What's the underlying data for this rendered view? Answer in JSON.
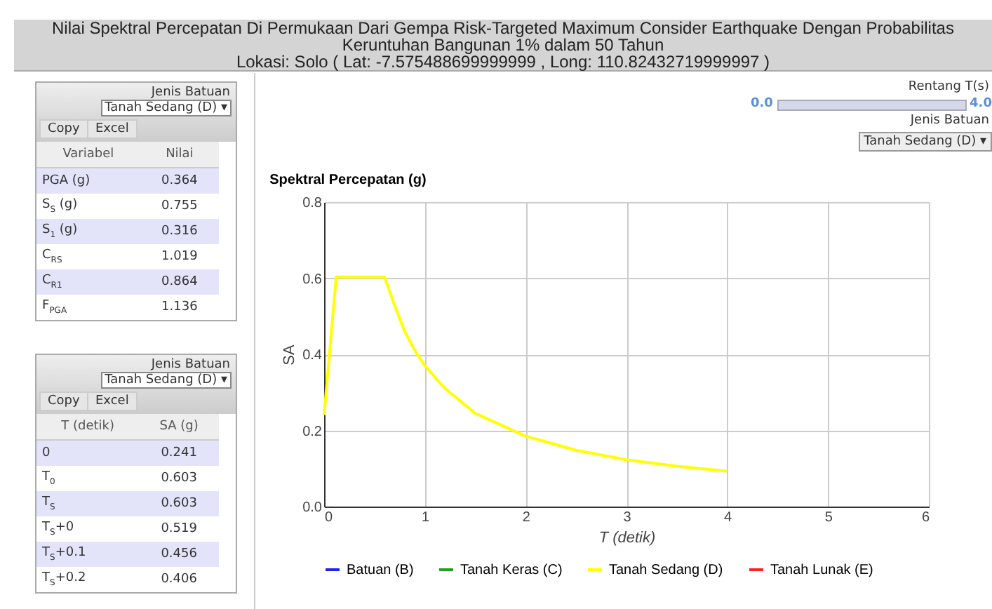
{
  "chart_data": [
    {
      "type": "other",
      "title": "Nilai Spektral Percepatan Di Permukaan Dari Gempa Risk-Targeted Maximum Consider Earthquake Dengan Probabilitas Keruntuhan Bangunan 1% dalam 50 Tahun",
      "subtitle": "Lokasi: Solo ( Lat: -7.575488699999999 , Long: 110.82432719999997 )"
    },
    {
      "type": "other",
      "title": "Jenis Batuan",
      "annotations": [
        "Tanah Sedang (D) ▾",
        "Copy",
        "Excel",
        "Variabel",
        "Nilai",
        "PGA (g)",
        "0.364",
        "S$_{S}$ (g)",
        "0.755",
        "S$_{1}$ (g)",
        "0.316",
        "C$_{RS}$",
        "1.019",
        "C$_{R1}$",
        "0.864",
        "F$_{PGA}$",
        "1.136"
      ]
    },
    {
      "type": "other",
      "title": "Jenis Batuan",
      "annotations": [
        "Tanah Sedang (D) ▾",
        "Copy",
        "Excel",
        "T (detik)",
        "SA (g)",
        "0",
        "0.241",
        "T$_{0}$",
        "0.603",
        "T$_{S}$",
        "0.603",
        "T$_{S}$+0",
        "0.519",
        "T$_{S}$+0.1",
        "0.456",
        "T$_{S}$+0.2",
        "0.406"
      ]
    },
    {
      "type": "other",
      "title": "Rentang T(s)",
      "annotations": [
        "0.0",
        "4.0",
        "Jenis Batuan",
        "Tanah Sedang (D) ▾"
      ]
    },
    {
      "type": "line",
      "title": "Spektral Percepatan (g)",
      "xlabel": "T (detik)",
      "ylabel": "SA",
      "x": [
        0,
        0.12,
        0.6,
        0.7,
        0.8,
        0.9,
        1,
        1.2,
        1.5,
        2,
        2.5,
        3,
        3.5,
        4
      ],
      "series": [
        {
          "name": "Batuan (B)",
          "color": "#2222ee",
          "values": [
            null,
            null,
            null,
            null,
            null,
            null,
            null,
            null,
            null,
            null,
            null,
            null,
            null,
            null
          ]
        },
        {
          "name": "Tanah Keras (C)",
          "color": "#22a022",
          "values": [
            null,
            null,
            null,
            null,
            null,
            null,
            null,
            null,
            null,
            null,
            null,
            null,
            null,
            null
          ]
        },
        {
          "name": "Tanah Sedang (D)",
          "color": "#ffff00",
          "values": [
            0.241,
            0.603,
            0.603,
            0.528,
            0.46,
            0.41,
            0.37,
            0.31,
            0.245,
            0.185,
            0.148,
            0.123,
            0.106,
            0.093
          ]
        },
        {
          "name": "Tanah Lunak (E)",
          "color": "#ff2222",
          "values": [
            null,
            null,
            null,
            null,
            null,
            null,
            null,
            null,
            null,
            null,
            null,
            null,
            null,
            null
          ]
        }
      ],
      "xlim": [
        0,
        6
      ],
      "xticks": [
        0,
        1,
        2,
        3,
        4,
        5,
        6
      ],
      "ylim": [
        0,
        0.8
      ],
      "yticks": [
        {
          "value": 0,
          "label": "0.0"
        },
        0.2,
        0.4,
        0.6,
        0.8
      ],
      "grid": true,
      "legend": "bottom",
      "marker": "none",
      "line_style": "solid"
    }
  ]
}
